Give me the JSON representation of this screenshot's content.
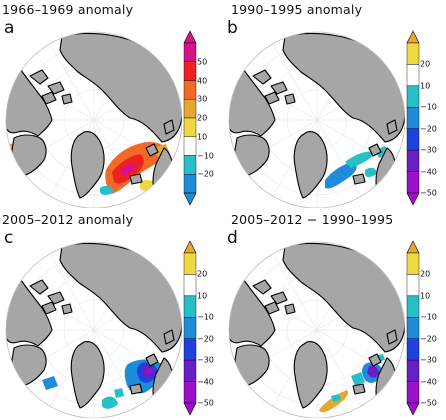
{
  "panels": [
    {
      "letter": "a",
      "title": "1966–1969  anomaly",
      "colorbar": {
        "ticks": [
          "50",
          "40",
          "30",
          "20",
          "10",
          "−10",
          "−20"
        ],
        "colors": [
          "#d4138a",
          "#ee2020",
          "#f26a26",
          "#e4a830",
          "#f0d840",
          "#ffffff",
          "#28c0c8",
          "#1e8cd8"
        ],
        "triangles": {
          "top": "#d4138a",
          "bottom": "#1e8cd8"
        }
      },
      "anomaly_type": "positive"
    },
    {
      "letter": "b",
      "title": "1990–1995  anomaly",
      "colorbar": {
        "ticks": [
          "20",
          "10",
          "−10",
          "−20",
          "−30",
          "−40",
          "−50"
        ],
        "colors": [
          "#f0d840",
          "#ffffff",
          "#28c0c8",
          "#1e8cd8",
          "#2040e0",
          "#6a1ec8",
          "#9c10c8"
        ],
        "triangles": {
          "top": "#e4a830",
          "bottom": "#a010c8"
        }
      },
      "anomaly_type": "negative-light"
    },
    {
      "letter": "c",
      "title": "2005–2012  anomaly",
      "colorbar": {
        "ticks": [
          "20",
          "10",
          "−10",
          "−20",
          "−30",
          "−40",
          "−50"
        ],
        "colors": [
          "#f0d840",
          "#ffffff",
          "#28c0c8",
          "#1e8cd8",
          "#2040e0",
          "#6a1ec8",
          "#9c10c8"
        ],
        "triangles": {
          "top": "#e4a830",
          "bottom": "#a010c8"
        }
      },
      "anomaly_type": "negative-strong"
    },
    {
      "letter": "d",
      "title": "2005–2012  −  1990–1995",
      "colorbar": {
        "ticks": [
          "20",
          "10",
          "−10",
          "−20",
          "−30",
          "−40",
          "−50"
        ],
        "colors": [
          "#f0d840",
          "#ffffff",
          "#28c0c8",
          "#1e8cd8",
          "#2040e0",
          "#6a1ec8",
          "#9c10c8"
        ],
        "triangles": {
          "top": "#e4a830",
          "bottom": "#a010c8"
        }
      },
      "anomaly_type": "difference"
    }
  ],
  "colors": {
    "land": "#a6a6a6",
    "coast": "#000000",
    "ocean": "#ffffff"
  }
}
